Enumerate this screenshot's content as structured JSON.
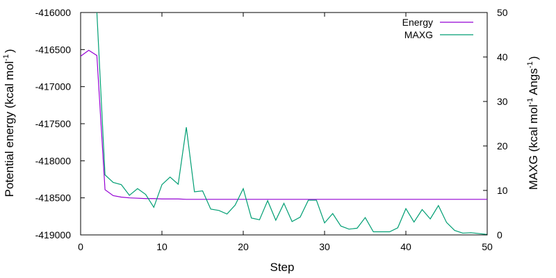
{
  "chart_data": {
    "type": "line",
    "title": "",
    "xlabel": "Step",
    "ylabel": "Potential energy (kcal mol",
    "ylabel_exp": "-1",
    "ylabel_tail": ")",
    "y2label": "MAXG (kcal mol",
    "y2label_exp1": "-1",
    "y2label_mid": " Angs",
    "y2label_exp2": "-1",
    "y2label_tail": ")",
    "xlim": [
      0,
      50
    ],
    "ylim": [
      -419000,
      -416000
    ],
    "y2lim": [
      0,
      50
    ],
    "xticks": [
      0,
      10,
      20,
      30,
      40,
      50
    ],
    "xtick_labels": [
      "0",
      "10",
      "20",
      "30",
      "40",
      "50"
    ],
    "yticks": [
      -416000,
      -416500,
      -417000,
      -417500,
      -418000,
      -418500,
      -419000
    ],
    "ytick_labels": [
      "-416000",
      "-416500",
      "-417000",
      "-417500",
      "-418000",
      "-418500",
      "-419000"
    ],
    "y2ticks": [
      50,
      40,
      30,
      20,
      10,
      0
    ],
    "y2tick_labels": [
      "50",
      "40",
      "30",
      "20",
      "10",
      "0"
    ],
    "grid": false,
    "legend_position": "top-right",
    "series": [
      {
        "name": "Energy",
        "axis": "left",
        "color": "#9400d3",
        "x": [
          0,
          1,
          2,
          3,
          4,
          5,
          6,
          7,
          8,
          9,
          10,
          11,
          12,
          13,
          14,
          15,
          16,
          17,
          18,
          19,
          20,
          21,
          22,
          23,
          24,
          25,
          26,
          27,
          28,
          29,
          30,
          31,
          32,
          33,
          34,
          35,
          36,
          37,
          38,
          39,
          40,
          41,
          42,
          43,
          44,
          45,
          46,
          47,
          48,
          49,
          50
        ],
        "y": [
          -416590,
          -416510,
          -416580,
          -418390,
          -418470,
          -418490,
          -418500,
          -418505,
          -418510,
          -418510,
          -418515,
          -418515,
          -418515,
          -418520,
          -418520,
          -418520,
          -418520,
          -418520,
          -418520,
          -418520,
          -418520,
          -418520,
          -418520,
          -418520,
          -418520,
          -418520,
          -418520,
          -418520,
          -418520,
          -418520,
          -418520,
          -418520,
          -418520,
          -418520,
          -418520,
          -418520,
          -418520,
          -418520,
          -418520,
          -418520,
          -418520,
          -418520,
          -418520,
          -418520,
          -418520,
          -418520,
          -418520,
          -418520,
          -418520,
          -418520,
          -418520
        ]
      },
      {
        "name": "MAXG",
        "axis": "right",
        "color": "#009e73",
        "x": [
          2,
          3,
          4,
          5,
          6,
          7,
          8,
          9,
          10,
          11,
          12,
          13,
          14,
          15,
          16,
          17,
          18,
          19,
          20,
          21,
          22,
          23,
          24,
          25,
          26,
          27,
          28,
          29,
          30,
          31,
          32,
          33,
          34,
          35,
          36,
          37,
          38,
          39,
          40,
          41,
          42,
          43,
          44,
          45,
          46,
          47,
          48,
          49,
          50
        ],
        "y": [
          50,
          13.5,
          11.8,
          11.3,
          8.9,
          10.4,
          9.1,
          6.2,
          11.3,
          13.0,
          11.4,
          24.2,
          9.7,
          9.9,
          5.8,
          5.5,
          4.7,
          6.7,
          10.4,
          3.8,
          3.4,
          7.7,
          3.3,
          7.1,
          3.0,
          4.0,
          7.8,
          7.8,
          2.7,
          4.8,
          2.0,
          1.3,
          1.5,
          3.9,
          0.7,
          0.7,
          0.7,
          1.6,
          5.9,
          2.9,
          5.7,
          3.6,
          6.6,
          2.8,
          1.0,
          0.4,
          0.5,
          0.3,
          0.1
        ]
      }
    ]
  }
}
